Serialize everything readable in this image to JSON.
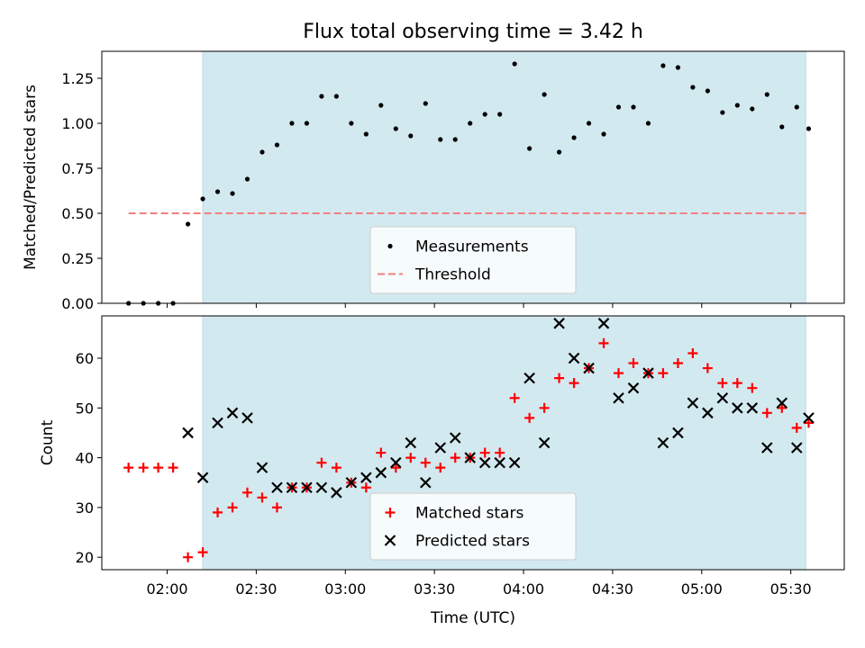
{
  "chart_data": {
    "type": "scatter",
    "title": "Flux total observing time = 3.42 h",
    "xlabel": "Time (UTC)",
    "xlim": [
      "01:38",
      "05:48"
    ],
    "x_ticks": [
      "02:00",
      "02:30",
      "03:00",
      "03:30",
      "04:00",
      "04:30",
      "05:00",
      "05:30"
    ],
    "observing_window": [
      "02:12",
      "05:35"
    ],
    "observing_window_color": "#d3e9f0",
    "times": [
      "01:47",
      "01:52",
      "01:57",
      "02:02",
      "02:07",
      "02:12",
      "02:17",
      "02:22",
      "02:27",
      "02:32",
      "02:37",
      "02:42",
      "02:47",
      "02:52",
      "02:57",
      "03:02",
      "03:07",
      "03:12",
      "03:17",
      "03:22",
      "03:27",
      "03:32",
      "03:37",
      "03:42",
      "03:47",
      "03:52",
      "03:57",
      "04:02",
      "04:07",
      "04:12",
      "04:17",
      "04:22",
      "04:27",
      "04:32",
      "04:37",
      "04:42",
      "04:47",
      "04:52",
      "04:57",
      "05:02",
      "05:07",
      "05:12",
      "05:17",
      "05:22",
      "05:27",
      "05:32",
      "05:36"
    ],
    "panels": [
      {
        "ylabel": "Matched/Predicted stars",
        "ylim": [
          0,
          1.4
        ],
        "y_ticks": [
          0.0,
          0.25,
          0.5,
          0.75,
          1.0,
          1.25
        ],
        "y_tick_labels": [
          "0.00",
          "0.25",
          "0.50",
          "0.75",
          "1.00",
          "1.25"
        ],
        "legend_position": "lower-center",
        "threshold": {
          "name": "Threshold",
          "value": 0.5,
          "x_range": [
            "01:47",
            "05:36"
          ],
          "color": "#f08080"
        },
        "series": [
          {
            "name": "Measurements",
            "marker": "dot",
            "color": "#000000",
            "values": [
              0.0,
              0.0,
              0.0,
              0.0,
              0.44,
              0.58,
              0.62,
              0.61,
              0.69,
              0.84,
              0.88,
              1.0,
              1.0,
              1.15,
              1.15,
              1.0,
              0.94,
              1.1,
              0.97,
              0.93,
              1.11,
              0.91,
              0.91,
              1.0,
              1.05,
              1.05,
              1.33,
              0.86,
              1.16,
              0.84,
              0.92,
              1.0,
              0.94,
              1.09,
              1.09,
              1.0,
              1.32,
              1.31,
              1.2,
              1.18,
              1.06,
              1.1,
              1.08,
              1.16,
              0.98,
              1.09,
              0.97
            ]
          }
        ]
      },
      {
        "ylabel": "Count",
        "ylim": [
          17.5,
          68.5
        ],
        "y_ticks": [
          20,
          30,
          40,
          50,
          60
        ],
        "y_tick_labels": [
          "20",
          "30",
          "40",
          "50",
          "60"
        ],
        "legend_position": "lower-center",
        "series": [
          {
            "name": "Matched stars",
            "marker": "plus",
            "color": "#ff0000",
            "values": [
              38,
              38,
              38,
              38,
              20,
              21,
              29,
              30,
              33,
              32,
              30,
              34,
              34,
              39,
              38,
              35,
              34,
              41,
              38,
              40,
              39,
              38,
              40,
              40,
              41,
              41,
              52,
              48,
              50,
              56,
              55,
              58,
              63,
              57,
              59,
              57,
              57,
              59,
              61,
              58,
              55,
              55,
              54,
              49,
              50,
              46,
              47
            ]
          },
          {
            "name": "Predicted stars",
            "marker": "x",
            "color": "#000000",
            "values": [
              null,
              null,
              null,
              null,
              45,
              36,
              47,
              49,
              48,
              38,
              34,
              34,
              34,
              34,
              33,
              35,
              36,
              37,
              39,
              43,
              35,
              42,
              44,
              40,
              39,
              39,
              39,
              56,
              43,
              67,
              60,
              58,
              67,
              52,
              54,
              57,
              43,
              45,
              51,
              49,
              52,
              50,
              50,
              42,
              51,
              42,
              48
            ]
          }
        ]
      }
    ]
  }
}
